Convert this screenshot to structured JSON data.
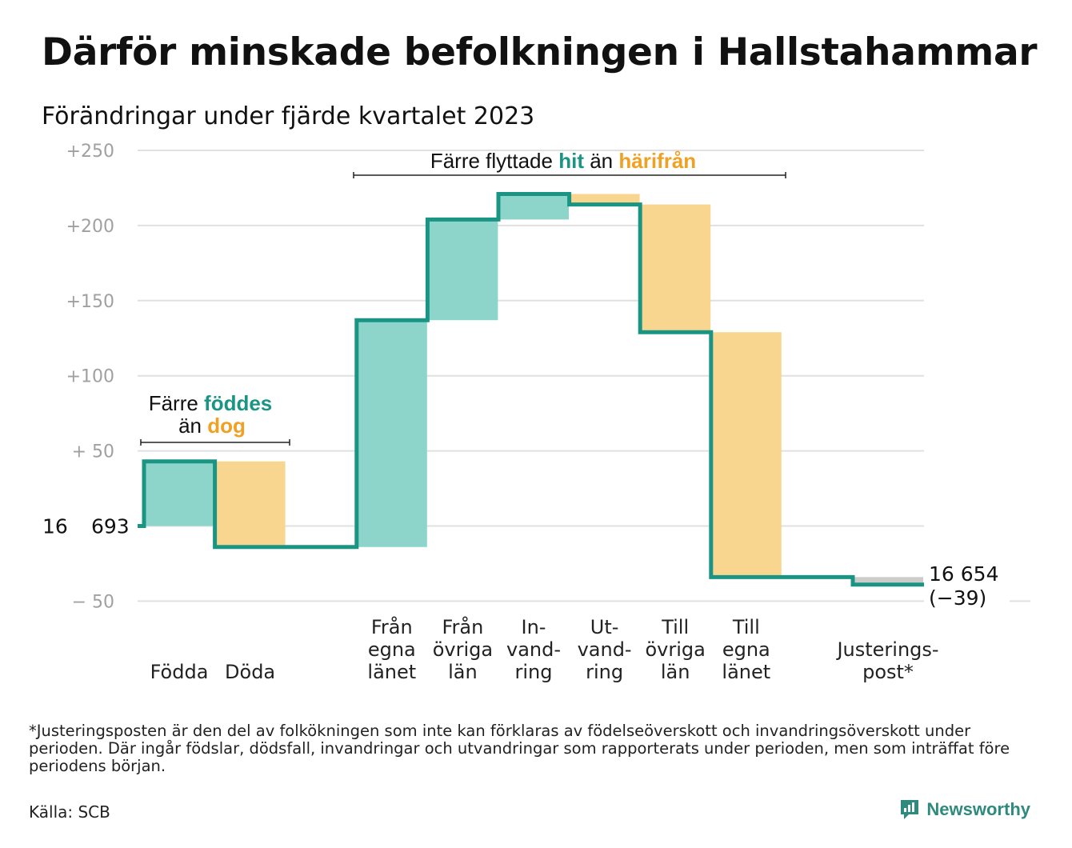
{
  "title": "Därför minskade befolkningen i Hallstahammar",
  "subtitle": "Förändringar under fjärde kvartalet 2023",
  "colors": {
    "teal_line": "#1a9584",
    "teal_fill": "#8dd5cb",
    "orange_fill": "#f9d68f",
    "orange_text": "#f0a023",
    "gray_fill": "#cccccc",
    "grid": "#e0e0e0",
    "tick_text": "#a0a0a0"
  },
  "chart_data": {
    "type": "waterfall",
    "start": {
      "label_parts": [
        "16",
        "693"
      ],
      "value": 16693
    },
    "end": {
      "label": "16 654",
      "change_label": "(−39)",
      "value": 16654,
      "change": -39
    },
    "y_ticks": [
      {
        "value": 250,
        "label": "+250"
      },
      {
        "value": 200,
        "label": "+200"
      },
      {
        "value": 150,
        "label": "+150"
      },
      {
        "value": 100,
        "label": "+100"
      },
      {
        "value": 50,
        "label": "+  50"
      },
      {
        "value": 0,
        "label": ""
      },
      {
        "value": -50,
        "label": "−  50"
      }
    ],
    "ylim": [
      -50,
      250
    ],
    "steps": [
      {
        "label_lines": [
          "Födda"
        ],
        "change": 43,
        "kind": "in"
      },
      {
        "label_lines": [
          "Döda"
        ],
        "change": -57,
        "kind": "out"
      },
      {
        "label_lines": [],
        "change": 0,
        "kind": "none"
      },
      {
        "label_lines": [
          "Från",
          "egna",
          "länet"
        ],
        "change": 151,
        "kind": "in"
      },
      {
        "label_lines": [
          "Från",
          "övriga",
          "län"
        ],
        "change": 67,
        "kind": "in"
      },
      {
        "label_lines": [
          "In-",
          "vand-",
          "ring"
        ],
        "change": 17,
        "kind": "in"
      },
      {
        "label_lines": [
          "Ut-",
          "vand-",
          "ring"
        ],
        "change": -7,
        "kind": "out"
      },
      {
        "label_lines": [
          "Till",
          "övriga",
          "län"
        ],
        "change": -85,
        "kind": "out"
      },
      {
        "label_lines": [
          "Till",
          "egna",
          "länet"
        ],
        "change": -163,
        "kind": "out"
      },
      {
        "label_lines": [],
        "change": 0,
        "kind": "none"
      },
      {
        "label_lines": [
          "Justerings-",
          "post*"
        ],
        "change": -5,
        "kind": "adjust"
      }
    ],
    "annotations": [
      {
        "id": "births",
        "parts": [
          {
            "text": "Färre ",
            "color": "dark"
          },
          {
            "text": "föddes",
            "color": "teal"
          }
        ],
        "parts2": [
          {
            "text": "än ",
            "color": "dark"
          },
          {
            "text": "dog",
            "color": "orange"
          }
        ]
      },
      {
        "id": "moves",
        "parts": [
          {
            "text": "Färre flyttade ",
            "color": "dark"
          },
          {
            "text": "hit",
            "color": "teal"
          },
          {
            "text": "  än ",
            "color": "dark"
          },
          {
            "text": "härifrån",
            "color": "orange"
          }
        ]
      }
    ]
  },
  "footnote": "*Justeringsposten är den del av folkökningen som inte kan förklaras av födelseöverskott och invandringsöverskott under perioden. Där ingår födslar, dödsfall, invandringar och utvandringar som rapporterats under perioden, men som inträffat före periodens början.",
  "source": "Källa: SCB",
  "brand": {
    "name": "Newsworthy",
    "logo_icon": "newsworthy-chart-logo-icon"
  }
}
